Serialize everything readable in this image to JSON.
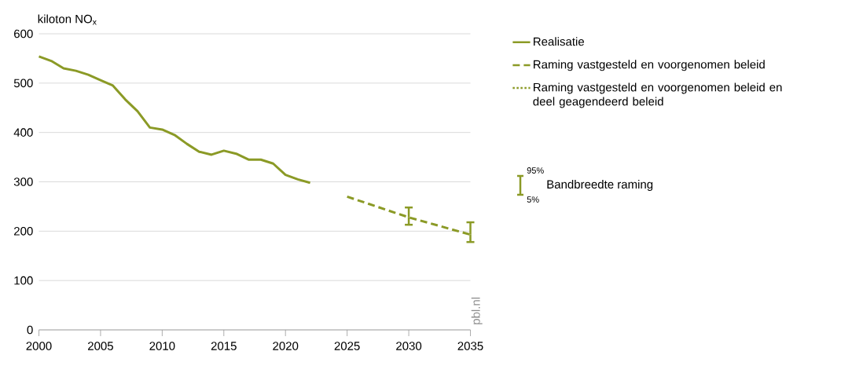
{
  "chart_data": {
    "type": "line",
    "ylabel": "kiloton NO$_{x}$",
    "series": [
      {
        "name": "Realisatie",
        "color": "#8b9a26",
        "line_style": "solid",
        "x": [
          2000,
          2001,
          2002,
          2003,
          2004,
          2005,
          2006,
          2007,
          2008,
          2009,
          2010,
          2011,
          2012,
          2013,
          2014,
          2015,
          2016,
          2017,
          2018,
          2019,
          2020,
          2021,
          2022
        ],
        "values": [
          554,
          545,
          530,
          525,
          517,
          506,
          495,
          467,
          443,
          410,
          406,
          395,
          377,
          361,
          355,
          363,
          357,
          345,
          345,
          337,
          314,
          305,
          298
        ]
      },
      {
        "name": "Raming vastgesteld en voorgenomen beleid",
        "color": "#8b9a26",
        "line_style": "dashed",
        "x": [
          2025,
          2030,
          2035
        ],
        "values": [
          270,
          228,
          193
        ],
        "errors": [
          null,
          [
            213,
            248
          ],
          [
            178,
            218
          ]
        ]
      },
      {
        "name": "Raming vastgesteld en voorgenomen beleid en deel geagendeerd beleid",
        "color": "#8b9a26",
        "line_style": "dotted"
      }
    ],
    "xlim": [
      2000,
      2035
    ],
    "xticks": [
      2000,
      2005,
      2010,
      2015,
      2020,
      2025,
      2030,
      2035
    ],
    "ylim": [
      0,
      600
    ],
    "yticks": [
      0,
      100,
      200,
      300,
      400,
      500,
      600
    ],
    "grid": "y",
    "legend": "top right",
    "marker": "none",
    "annotations": [
      "Bandbreedte raming",
      "95%",
      "5%",
      "pbl.nl"
    ]
  }
}
